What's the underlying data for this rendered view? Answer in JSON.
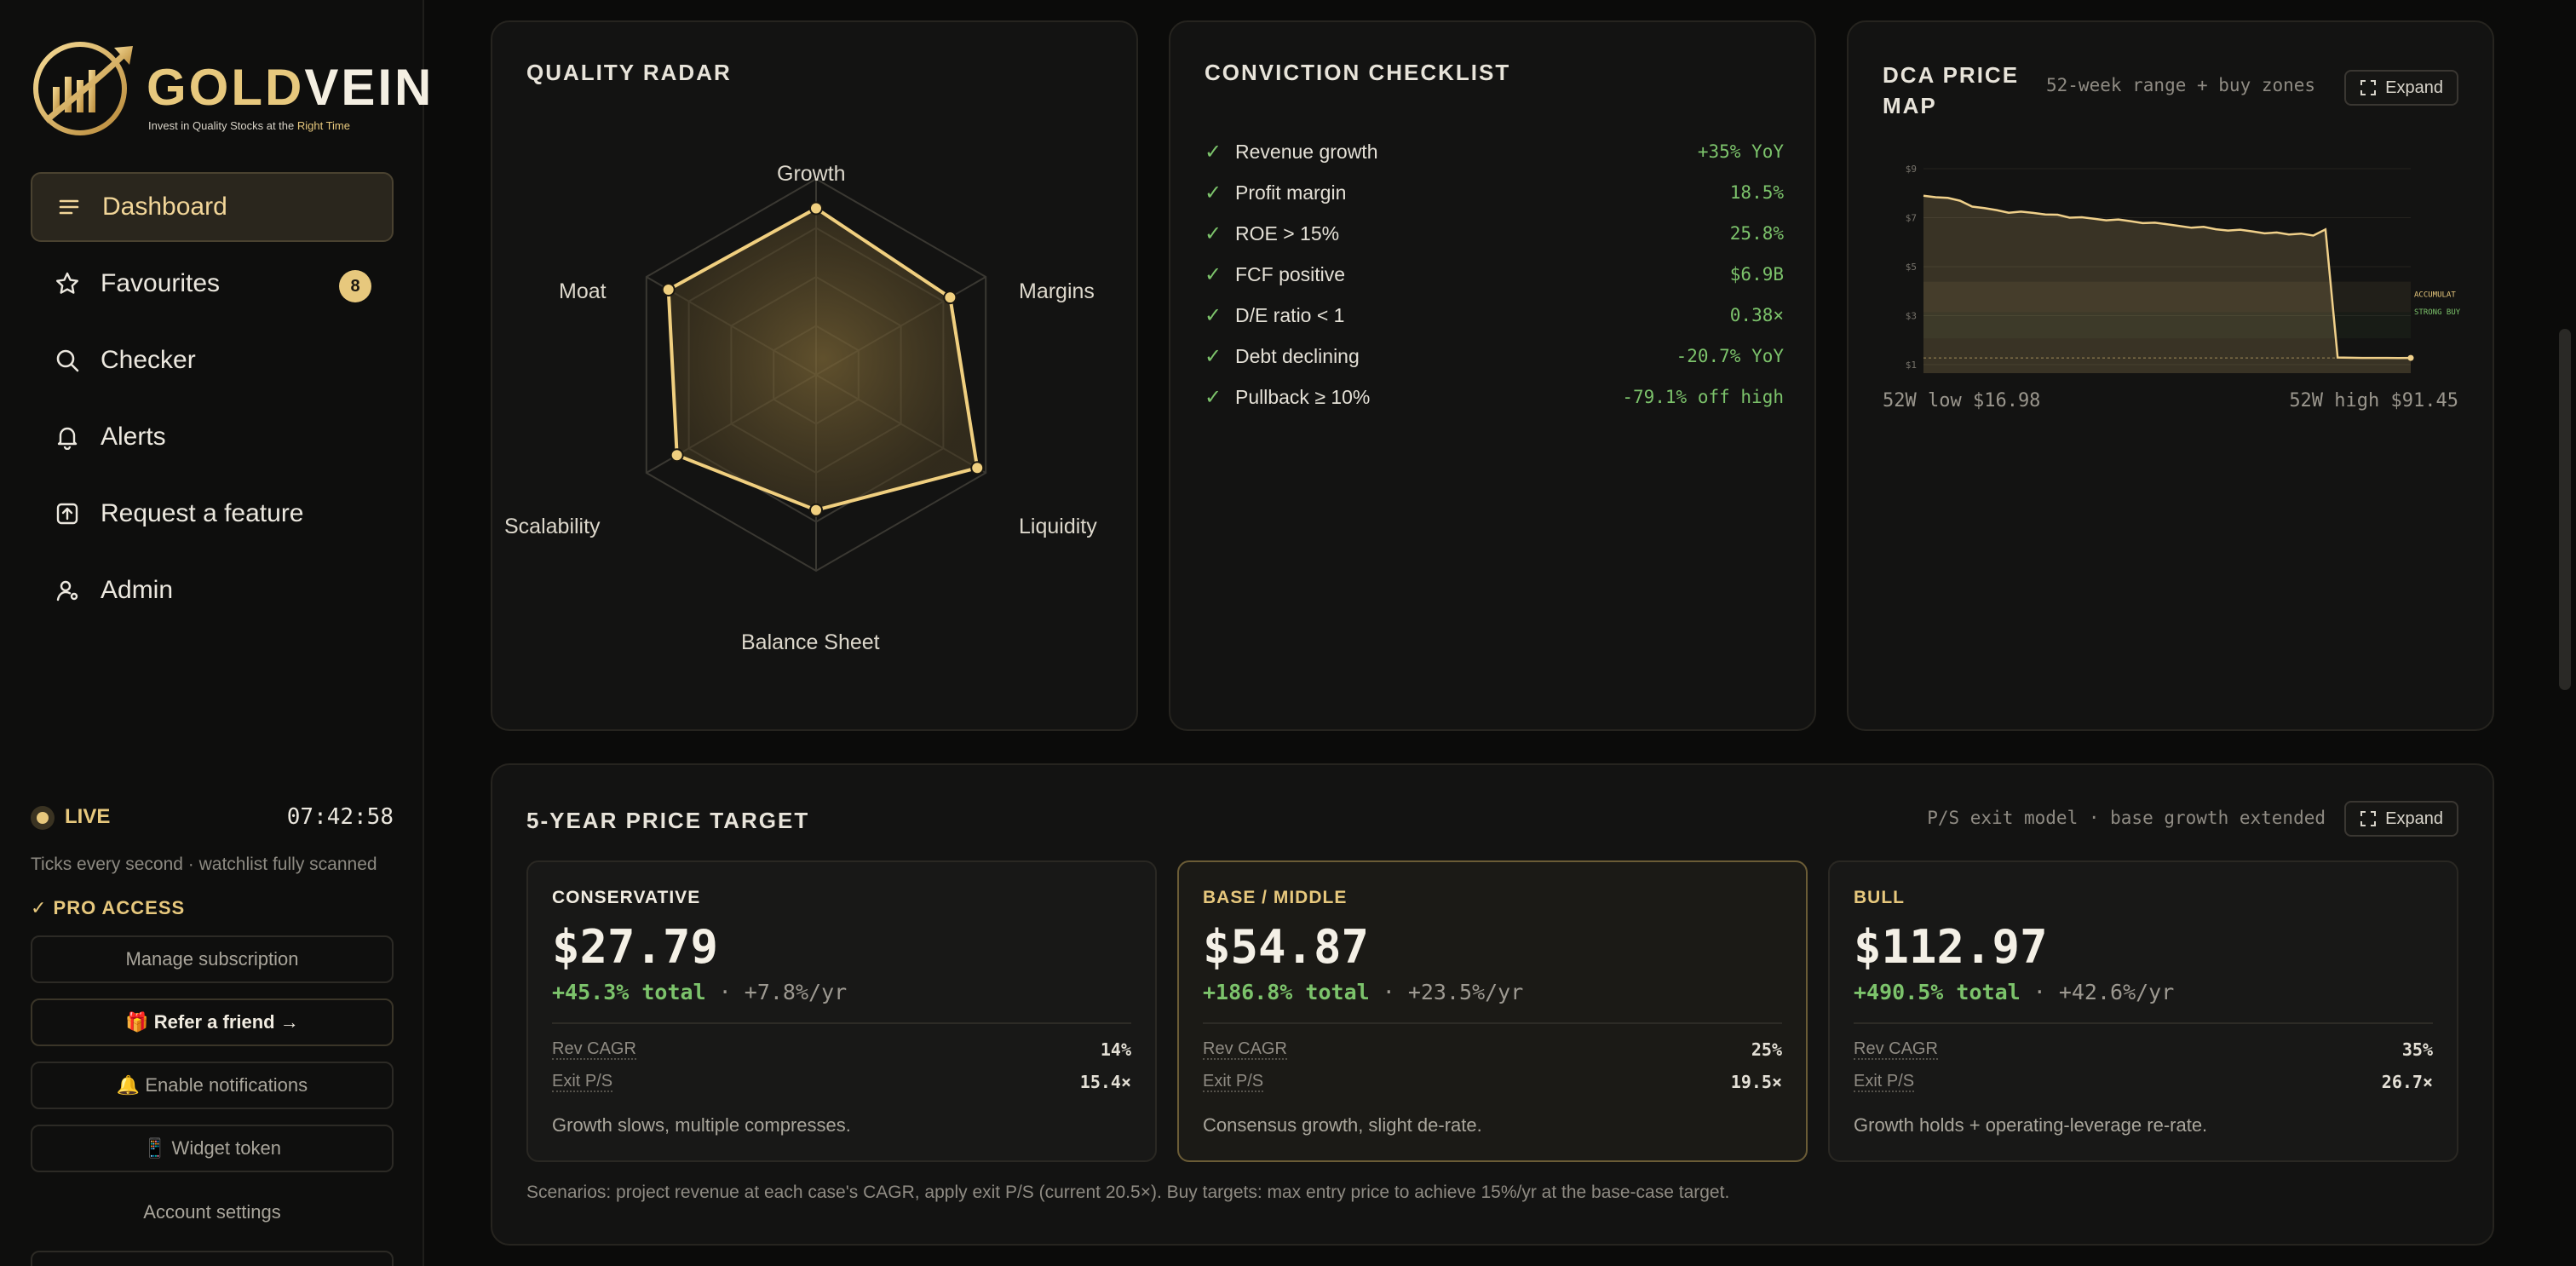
{
  "brand": {
    "name_part1": "GOLD",
    "name_part2": "VEIN",
    "tagline_pre": "Invest in Quality Stocks at the ",
    "tagline_highlight": "Right Time",
    "accent": "#e7c87d"
  },
  "sidebar": {
    "items": [
      {
        "label": "Dashboard",
        "icon": "menu-lines-icon",
        "active": true
      },
      {
        "label": "Favourites",
        "icon": "star-icon",
        "badge": "8"
      },
      {
        "label": "Checker",
        "icon": "search-icon"
      },
      {
        "label": "Alerts",
        "icon": "bell-icon"
      },
      {
        "label": "Request a feature",
        "icon": "upload-box-icon"
      },
      {
        "label": "Admin",
        "icon": "user-gear-icon"
      }
    ],
    "live_label": "LIVE",
    "clock": "07:42:58",
    "ticks_text": "Ticks every second · watchlist fully scanned",
    "pro_label": "✓ PRO ACCESS",
    "buttons": {
      "manage": "Manage subscription",
      "refer": "🎁 Refer a friend →",
      "notify": "🔔 Enable notifications",
      "widget": "📱 Widget token"
    },
    "account_settings": "Account settings"
  },
  "radar": {
    "title": "QUALITY RADAR",
    "axes": [
      "Growth",
      "Margins",
      "Liquidity",
      "Balance Sheet",
      "Scalability",
      "Moat"
    ],
    "values": [
      0.85,
      0.79,
      0.95,
      0.69,
      0.82,
      0.87
    ]
  },
  "checklist": {
    "title": "CONVICTION CHECKLIST",
    "rows": [
      {
        "label": "Revenue growth",
        "value": "+35% YoY"
      },
      {
        "label": "Profit margin",
        "value": "18.5%"
      },
      {
        "label": "ROE > 15%",
        "value": "25.8%"
      },
      {
        "label": "FCF positive",
        "value": "$6.9B"
      },
      {
        "label": "D/E ratio < 1",
        "value": "0.38×"
      },
      {
        "label": "Debt declining",
        "value": "-20.7% YoY"
      },
      {
        "label": "Pullback ≥ 10%",
        "value": "-79.1% off high"
      }
    ]
  },
  "dca": {
    "title_line1": "DCA PRICE",
    "title_line2": "MAP",
    "subtitle": "52-week range + buy zones",
    "expand": "Expand",
    "low_label": "52W low $16.98",
    "high_label": "52W high $91.45",
    "chart_data": {
      "type": "area",
      "y_ticks": [
        "$9",
        "$7",
        "$5",
        "$3",
        "$1"
      ],
      "zones": [
        "ACCUMULAT",
        "STRONG BUY"
      ],
      "series": [
        {
          "values": [
            91.45,
            90.8,
            90.5,
            89.2,
            86.5,
            85.8,
            84.9,
            83.7,
            84.2,
            83.6,
            82.9,
            82.8,
            81.4,
            81.6,
            80.9,
            80.2,
            80.6,
            79.8,
            78.9,
            79.1,
            78.4,
            77.6,
            76.8,
            77.2,
            76.1,
            75.5,
            75.9,
            75.1,
            74.2,
            74.6,
            73.7,
            74.1,
            73.2,
            76.0,
            17.2,
            17.1,
            17.0,
            17.0,
            17.0,
            16.98,
            17.0
          ]
        }
      ]
    }
  },
  "target": {
    "title": "5-YEAR PRICE TARGET",
    "subtitle": "P/S exit model · base growth extended",
    "expand": "Expand",
    "scenarios": [
      {
        "name": "CONSERVATIVE",
        "price": "$27.79",
        "total": "+45.3% total",
        "yr": " · +7.8%/yr",
        "rev_cagr": "14%",
        "exit_ps": "15.4×",
        "note": "Growth slows, multiple compresses.",
        "color": "#f1ece1"
      },
      {
        "name": "BASE / MIDDLE",
        "price": "$54.87",
        "total": "+186.8% total",
        "yr": " · +23.5%/yr",
        "rev_cagr": "25%",
        "exit_ps": "19.5×",
        "note": "Consensus growth, slight de-rate.",
        "color": "#e7c87d"
      },
      {
        "name": "BULL",
        "price": "$112.97",
        "total": "+490.5% total",
        "yr": " · +42.6%/yr",
        "rev_cagr": "35%",
        "exit_ps": "26.7×",
        "note": "Growth holds + operating-leverage re-rate.",
        "color": "#e7c87d"
      }
    ],
    "labels": {
      "rev_cagr": "Rev CAGR",
      "exit_ps": "Exit P/S"
    },
    "footnote": "Scenarios: project revenue at each case's CAGR, apply exit P/S (current 20.5×). Buy targets: max entry price to achieve 15%/yr at the base-case target."
  }
}
